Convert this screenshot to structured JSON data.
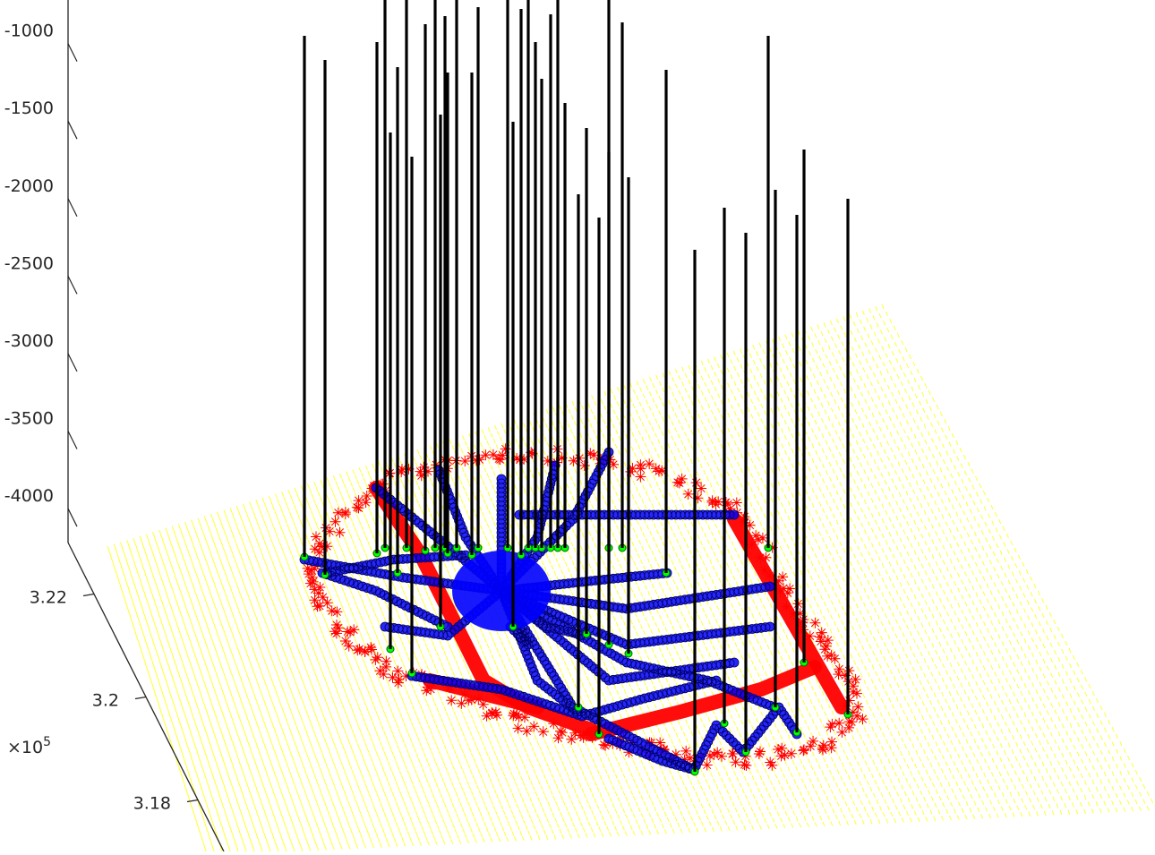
{
  "chart_data": {
    "type": "scatter",
    "view": "3d",
    "title": "",
    "xlabel": "",
    "ylabel": "",
    "zlabel": "",
    "grid": false,
    "legend": "none",
    "z_axis": {
      "ticks": [
        -1000,
        -1500,
        -2000,
        -2500,
        -3000,
        -3500,
        -4000
      ],
      "tick_labels": [
        "-1000",
        "-1500",
        "-2000",
        "-2500",
        "-3000",
        "-3500",
        "-4000"
      ],
      "range": [
        -4300,
        -800
      ]
    },
    "y_axis": {
      "ticks": [
        3.18,
        3.2,
        3.22
      ],
      "tick_labels": [
        "3.18",
        "3.2",
        "3.22"
      ],
      "exponent_label": "×10",
      "exponent_power": "5",
      "range": [
        3.17,
        3.23
      ]
    },
    "colors": {
      "surface": "#ffff00",
      "boundary": "#ff0000",
      "network": "#0000ff",
      "network_edge": "#000066",
      "nodes": "#00ff00",
      "verticals": "#000000",
      "axes": "#262626"
    },
    "series": [
      {
        "marker": "dot",
        "color": "#ffff00"
      },
      {
        "marker": "asterisk",
        "color": "#ff0000"
      },
      {
        "marker": "circle",
        "color": "#0000ff"
      },
      {
        "marker": "circle-filled",
        "color": "#00ff00"
      },
      {
        "marker": "line",
        "color": "#000000"
      }
    ]
  }
}
